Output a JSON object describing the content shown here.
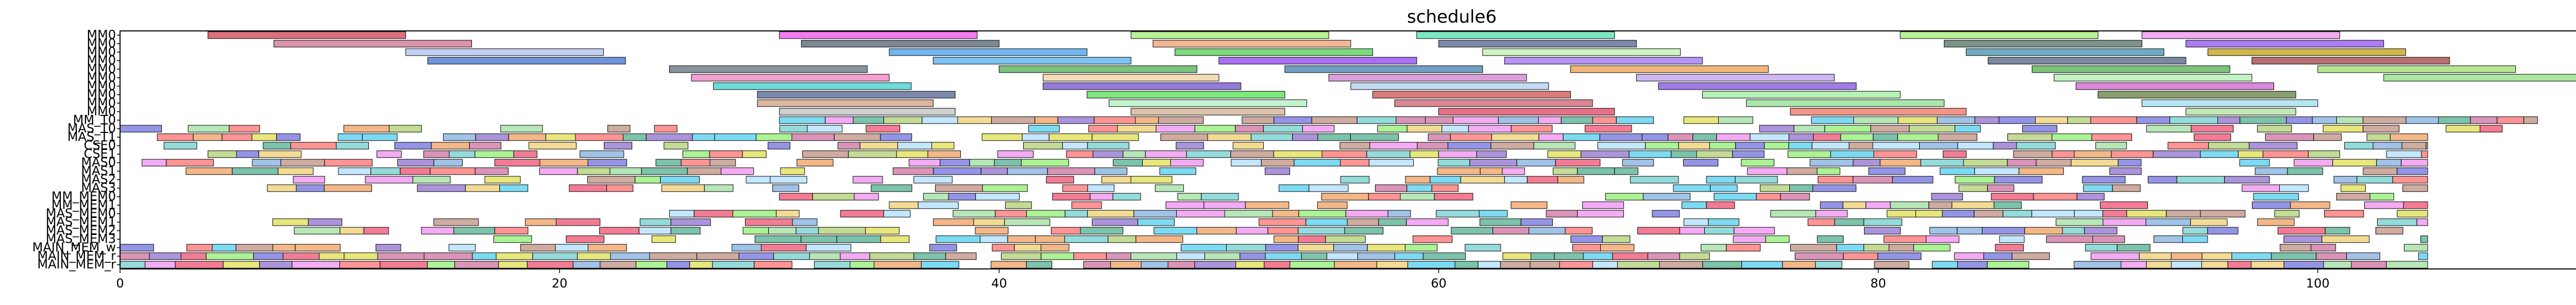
{
  "chart_data": {
    "type": "bar",
    "subtype": "gantt",
    "title": "schedule6",
    "xlabel": "",
    "ylabel": "",
    "xlim": [
      0,
      115.5
    ],
    "xticks": [
      0,
      20,
      40,
      60,
      80,
      100
    ],
    "grid": false,
    "legend": "none",
    "rows": [
      "MM0",
      "MM0",
      "MM0",
      "MM0",
      "MM0",
      "MM0",
      "MM0",
      "MM0",
      "MM0",
      "MM0",
      "MM_T0",
      "MAS_T0",
      "MAS_T1",
      "CSE0",
      "CSE1",
      "MAS0",
      "MAS1",
      "MAS2",
      "MAS3",
      "MM_MEM0",
      "MM_MEM1",
      "MAS_MEM0",
      "MAS_MEM1",
      "MAS_MEM2",
      "MAS_MEM3",
      "MAIN_MEM_w",
      "MAIN_MEM_r",
      "MAIN_MEM_r"
    ],
    "tasks": [
      {
        "row": 0,
        "start": 4.0,
        "end": 13.0,
        "color": "#cc3344"
      },
      {
        "row": 0,
        "start": 30.0,
        "end": 39.0,
        "color": "#ee44ee"
      },
      {
        "row": 0,
        "start": 46.0,
        "end": 55.0,
        "color": "#99ee66"
      },
      {
        "row": 0,
        "start": 59.0,
        "end": 68.0,
        "color": "#44ddaa"
      },
      {
        "row": 0,
        "start": 81.0,
        "end": 90.0,
        "color": "#99ee66"
      },
      {
        "row": 0,
        "start": 92.0,
        "end": 101.0,
        "color": "#ee88ee"
      },
      {
        "row": 1,
        "start": 7.0,
        "end": 16.0,
        "color": "#cc6688"
      },
      {
        "row": 1,
        "start": 31.0,
        "end": 40.0,
        "color": "#445566"
      },
      {
        "row": 1,
        "start": 47.0,
        "end": 56.0,
        "color": "#ee9966"
      },
      {
        "row": 1,
        "start": 60.0,
        "end": 69.0,
        "color": "#445588"
      },
      {
        "row": 1,
        "start": 83.0,
        "end": 92.0,
        "color": "#446655"
      },
      {
        "row": 1,
        "start": 94.0,
        "end": 103.0,
        "color": "#8844ee"
      },
      {
        "row": 2,
        "start": 13.0,
        "end": 22.0,
        "color": "#aabbee"
      },
      {
        "row": 2,
        "start": 35.0,
        "end": 44.0,
        "color": "#3399ee"
      },
      {
        "row": 2,
        "start": 48.0,
        "end": 57.0,
        "color": "#44cc44"
      },
      {
        "row": 2,
        "start": 62.0,
        "end": 71.0,
        "color": "#bbeeaa"
      },
      {
        "row": 2,
        "start": 84.0,
        "end": 93.0,
        "color": "#3388aa"
      },
      {
        "row": 2,
        "start": 95.0,
        "end": 104.0,
        "color": "#bb9900"
      },
      {
        "row": 3,
        "start": 14.0,
        "end": 23.0,
        "color": "#3366cc"
      },
      {
        "row": 3,
        "start": 37.0,
        "end": 46.0,
        "color": "#44aaee"
      },
      {
        "row": 3,
        "start": 50.0,
        "end": 59.0,
        "color": "#8833ee"
      },
      {
        "row": 3,
        "start": 63.0,
        "end": 72.0,
        "color": "#9966ee"
      },
      {
        "row": 3,
        "start": 85.0,
        "end": 94.0,
        "color": "#445577"
      },
      {
        "row": 3,
        "start": 97.0,
        "end": 106.0,
        "color": "#993333"
      },
      {
        "row": 4,
        "start": 25.0,
        "end": 34.0,
        "color": "#556677"
      },
      {
        "row": 4,
        "start": 40.0,
        "end": 49.0,
        "color": "#44aa44"
      },
      {
        "row": 4,
        "start": 53.0,
        "end": 62.0,
        "color": "#3377aa"
      },
      {
        "row": 4,
        "start": 66.0,
        "end": 75.0,
        "color": "#ee9944"
      },
      {
        "row": 4,
        "start": 87.0,
        "end": 96.0,
        "color": "#44aa44"
      },
      {
        "row": 4,
        "start": 100.0,
        "end": 109.0,
        "color": "#99dd66"
      },
      {
        "row": 5,
        "start": 26.0,
        "end": 35.0,
        "color": "#ee77bb"
      },
      {
        "row": 5,
        "start": 42.0,
        "end": 50.0,
        "color": "#eecc99"
      },
      {
        "row": 5,
        "start": 55.0,
        "end": 64.0,
        "color": "#cc77cc"
      },
      {
        "row": 5,
        "start": 69.0,
        "end": 78.0,
        "color": "#bb99ee"
      },
      {
        "row": 5,
        "start": 88.0,
        "end": 97.0,
        "color": "#aaeeaa"
      },
      {
        "row": 5,
        "start": 103.0,
        "end": 115.5,
        "color": "#88dd77"
      },
      {
        "row": 6,
        "start": 27.0,
        "end": 36.0,
        "color": "#33cccc"
      },
      {
        "row": 6,
        "start": 42.0,
        "end": 51.0,
        "color": "#6644cc"
      },
      {
        "row": 6,
        "start": 56.0,
        "end": 65.0,
        "color": "#aaccee"
      },
      {
        "row": 6,
        "start": 70.0,
        "end": 79.0,
        "color": "#7744dd"
      },
      {
        "row": 6,
        "start": 89.0,
        "end": 98.0,
        "color": "#cc55cc"
      },
      {
        "row": 7,
        "start": 29.0,
        "end": 38.0,
        "color": "#445588"
      },
      {
        "row": 7,
        "start": 44.0,
        "end": 53.0,
        "color": "#44dd44"
      },
      {
        "row": 7,
        "start": 57.0,
        "end": 66.0,
        "color": "#cc4444"
      },
      {
        "row": 7,
        "start": 72.0,
        "end": 81.0,
        "color": "#99ee99"
      },
      {
        "row": 7,
        "start": 90.0,
        "end": 99.0,
        "color": "#557733"
      },
      {
        "row": 8,
        "start": 29.0,
        "end": 37.0,
        "color": "#cc9977"
      },
      {
        "row": 8,
        "start": 45.0,
        "end": 54.0,
        "color": "#aaeebb"
      },
      {
        "row": 8,
        "start": 58.0,
        "end": 67.0,
        "color": "#cc5566"
      },
      {
        "row": 8,
        "start": 74.0,
        "end": 83.0,
        "color": "#88dd88"
      },
      {
        "row": 8,
        "start": 92.0,
        "end": 100.0,
        "color": "#99ddee"
      },
      {
        "row": 9,
        "start": 30.0,
        "end": 38.0,
        "color": "#bbbbbb"
      },
      {
        "row": 9,
        "start": 46.0,
        "end": 53.0,
        "color": "#ccaa88"
      },
      {
        "row": 9,
        "start": 60.0,
        "end": 68.0,
        "color": "#dd3355"
      },
      {
        "row": 9,
        "start": 76.0,
        "end": 84.0,
        "color": "#ee6655"
      },
      {
        "row": 9,
        "start": 94.0,
        "end": 99.0,
        "color": "#aadd99"
      }
    ],
    "dense_rows": [
      {
        "row": 10,
        "seed": 11,
        "start": 30,
        "end": 110,
        "density": 0.85
      },
      {
        "row": 11,
        "seed": 12,
        "start": 0,
        "end": 110,
        "density": 0.62
      },
      {
        "row": 12,
        "seed": 13,
        "start": 0,
        "end": 105,
        "density": 0.8
      },
      {
        "row": 13,
        "seed": 14,
        "start": 2,
        "end": 105,
        "density": 0.75
      },
      {
        "row": 14,
        "seed": 15,
        "start": 4,
        "end": 105,
        "density": 0.72
      },
      {
        "row": 15,
        "seed": 16,
        "start": 1,
        "end": 105,
        "density": 0.7
      },
      {
        "row": 16,
        "seed": 17,
        "start": 3,
        "end": 105,
        "density": 0.68
      },
      {
        "row": 17,
        "seed": 18,
        "start": 3,
        "end": 105,
        "density": 0.6
      },
      {
        "row": 18,
        "seed": 19,
        "start": 3,
        "end": 105,
        "density": 0.6
      },
      {
        "row": 19,
        "seed": 20,
        "start": 30,
        "end": 105,
        "density": 0.6
      },
      {
        "row": 20,
        "seed": 21,
        "start": 35,
        "end": 105,
        "density": 0.55
      },
      {
        "row": 21,
        "seed": 22,
        "start": 25,
        "end": 105,
        "density": 0.78
      },
      {
        "row": 22,
        "seed": 23,
        "start": 3,
        "end": 105,
        "density": 0.55
      },
      {
        "row": 23,
        "seed": 24,
        "start": 6,
        "end": 105,
        "density": 0.6
      },
      {
        "row": 24,
        "seed": 25,
        "start": 17,
        "end": 105,
        "density": 0.55
      },
      {
        "row": 25,
        "seed": 26,
        "start": 0,
        "end": 105,
        "density": 0.55
      },
      {
        "row": 26,
        "seed": 27,
        "start": 0,
        "end": 105,
        "density": 0.95
      },
      {
        "row": 27,
        "seed": 28,
        "start": 0,
        "end": 105,
        "density": 0.92
      }
    ]
  }
}
